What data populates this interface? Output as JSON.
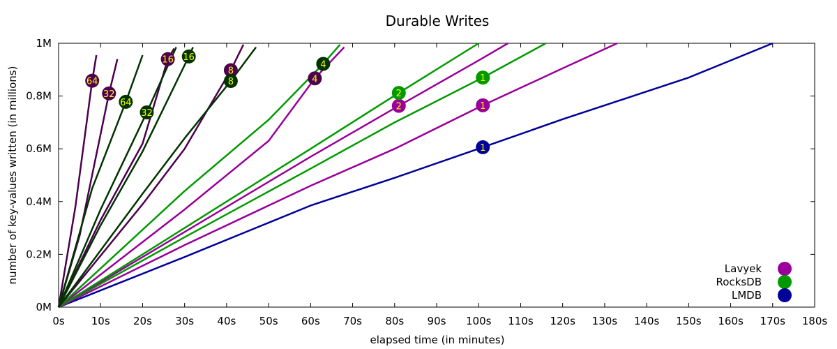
{
  "chart_data": {
    "type": "line",
    "title": "Durable Writes",
    "xlabel": "elapsed time (in minutes)",
    "ylabel": "number of key-values written (in millions)",
    "xlim": [
      0,
      180
    ],
    "ylim": [
      0,
      1000000
    ],
    "x_ticks": [
      {
        "v": 0,
        "label": "0s"
      },
      {
        "v": 10,
        "label": "10s"
      },
      {
        "v": 20,
        "label": "20s"
      },
      {
        "v": 30,
        "label": "30s"
      },
      {
        "v": 40,
        "label": "40s"
      },
      {
        "v": 50,
        "label": "50s"
      },
      {
        "v": 60,
        "label": "60s"
      },
      {
        "v": 70,
        "label": "70s"
      },
      {
        "v": 80,
        "label": "80s"
      },
      {
        "v": 90,
        "label": "90s"
      },
      {
        "v": 100,
        "label": "100s"
      },
      {
        "v": 110,
        "label": "110s"
      },
      {
        "v": 120,
        "label": "120s"
      },
      {
        "v": 130,
        "label": "130s"
      },
      {
        "v": 140,
        "label": "140s"
      },
      {
        "v": 150,
        "label": "150s"
      },
      {
        "v": 160,
        "label": "160s"
      },
      {
        "v": 170,
        "label": "170s"
      },
      {
        "v": 180,
        "label": "180s"
      }
    ],
    "y_ticks": [
      {
        "v": 0,
        "label": "0M"
      },
      {
        "v": 200000,
        "label": "0.2M"
      },
      {
        "v": 400000,
        "label": "0.4M"
      },
      {
        "v": 600000,
        "label": "0.6M"
      },
      {
        "v": 800000,
        "label": "0.8M"
      },
      {
        "v": 1000000,
        "label": "1M"
      }
    ],
    "grid": false,
    "legend_position": "bottom-right",
    "legend": [
      {
        "name": "Lavyek",
        "color": "#990099"
      },
      {
        "name": "RocksDB",
        "color": "#009900"
      },
      {
        "name": "LMDB",
        "color": "#000099"
      }
    ],
    "series": [
      {
        "db": "LMDB",
        "threads": "1",
        "color": "#000099",
        "points": [
          [
            0,
            0
          ],
          [
            30,
            190000
          ],
          [
            60,
            385000
          ],
          [
            80,
            490000
          ],
          [
            101,
            606000
          ],
          [
            120,
            712000
          ],
          [
            150,
            870000
          ],
          [
            170,
            1000000
          ]
        ],
        "marker": [
          101,
          606000
        ]
      },
      {
        "db": "Lavyek",
        "threads": "1",
        "color": "#990099",
        "points": [
          [
            0,
            0
          ],
          [
            30,
            235000
          ],
          [
            60,
            460000
          ],
          [
            80,
            600000
          ],
          [
            101,
            765000
          ],
          [
            120,
            905000
          ],
          [
            133,
            1000000
          ]
        ],
        "marker": [
          101,
          765000
        ]
      },
      {
        "db": "RocksDB",
        "threads": "1",
        "color": "#009900",
        "points": [
          [
            0,
            0
          ],
          [
            30,
            265000
          ],
          [
            60,
            525000
          ],
          [
            80,
            700000
          ],
          [
            101,
            870000
          ],
          [
            116,
            1000000
          ]
        ],
        "marker": [
          101,
          870000
        ]
      },
      {
        "db": "Lavyek",
        "threads": "2",
        "color": "#990099",
        "points": [
          [
            0,
            0
          ],
          [
            30,
            285000
          ],
          [
            60,
            570000
          ],
          [
            81,
            763000
          ],
          [
            100,
            935000
          ],
          [
            107,
            1000000
          ]
        ],
        "marker": [
          81,
          763000
        ]
      },
      {
        "db": "RocksDB",
        "threads": "2",
        "color": "#009900",
        "points": [
          [
            0,
            0
          ],
          [
            30,
            300000
          ],
          [
            60,
            600000
          ],
          [
            81,
            812000
          ],
          [
            100,
            1000000
          ]
        ],
        "marker": [
          81,
          812000
        ]
      },
      {
        "db": "Lavyek",
        "threads": "4",
        "color": "#990099",
        "points": [
          [
            0,
            0
          ],
          [
            30,
            370000
          ],
          [
            50,
            630000
          ],
          [
            61,
            867000
          ],
          [
            68,
            985000
          ]
        ],
        "marker": [
          61,
          867000
        ]
      },
      {
        "db": "RocksDB",
        "threads": "4",
        "color": "#009900",
        "points": [
          [
            0,
            0
          ],
          [
            30,
            440000
          ],
          [
            50,
            710000
          ],
          [
            63,
            922000
          ],
          [
            67,
            995000
          ]
        ],
        "marker": [
          63,
          922000
        ]
      },
      {
        "db": "Lavyek",
        "threads": "8",
        "color": "#990099",
        "points": [
          [
            0,
            0
          ],
          [
            20,
            390000
          ],
          [
            30,
            600000
          ],
          [
            41,
            898000
          ],
          [
            44,
            995000
          ]
        ],
        "marker": [
          41,
          898000
        ]
      },
      {
        "db": "RocksDB",
        "threads": "8",
        "color": "#009900",
        "points": [
          [
            0,
            0
          ],
          [
            20,
            430000
          ],
          [
            30,
            640000
          ],
          [
            41,
            857000
          ],
          [
            47,
            985000
          ]
        ],
        "marker": [
          41,
          857000
        ]
      },
      {
        "db": "Lavyek",
        "threads": "16",
        "color": "#990099",
        "points": [
          [
            0,
            0
          ],
          [
            10,
            330000
          ],
          [
            20,
            620000
          ],
          [
            26,
            940000
          ],
          [
            27.5,
            980000
          ]
        ],
        "marker": [
          26,
          940000
        ]
      },
      {
        "db": "RocksDB",
        "threads": "16",
        "color": "#009900",
        "points": [
          [
            0,
            0
          ],
          [
            10,
            310000
          ],
          [
            20,
            590000
          ],
          [
            31,
            950000
          ],
          [
            32,
            985000
          ]
        ],
        "marker": [
          31,
          950000
        ]
      },
      {
        "db": "Lavyek",
        "threads": "32",
        "color": "#990099",
        "points": [
          [
            0,
            0
          ],
          [
            5,
            270000
          ],
          [
            12,
            810000
          ],
          [
            14,
            940000
          ]
        ],
        "marker": [
          12,
          810000
        ]
      },
      {
        "db": "RocksDB",
        "threads": "32",
        "color": "#009900",
        "points": [
          [
            0,
            0
          ],
          [
            10,
            370000
          ],
          [
            21,
            738000
          ],
          [
            28,
            985000
          ]
        ],
        "marker": [
          21,
          738000
        ]
      },
      {
        "db": "Lavyek",
        "threads": "64",
        "color": "#990099",
        "points": [
          [
            0,
            0
          ],
          [
            4,
            380000
          ],
          [
            8,
            858000
          ],
          [
            9,
            955000
          ]
        ],
        "marker": [
          8,
          858000
        ]
      },
      {
        "db": "RocksDB",
        "threads": "64",
        "color": "#009900",
        "points": [
          [
            0,
            0
          ],
          [
            8,
            450000
          ],
          [
            16,
            778000
          ],
          [
            20,
            955000
          ]
        ],
        "marker": [
          16,
          778000
        ]
      }
    ]
  }
}
